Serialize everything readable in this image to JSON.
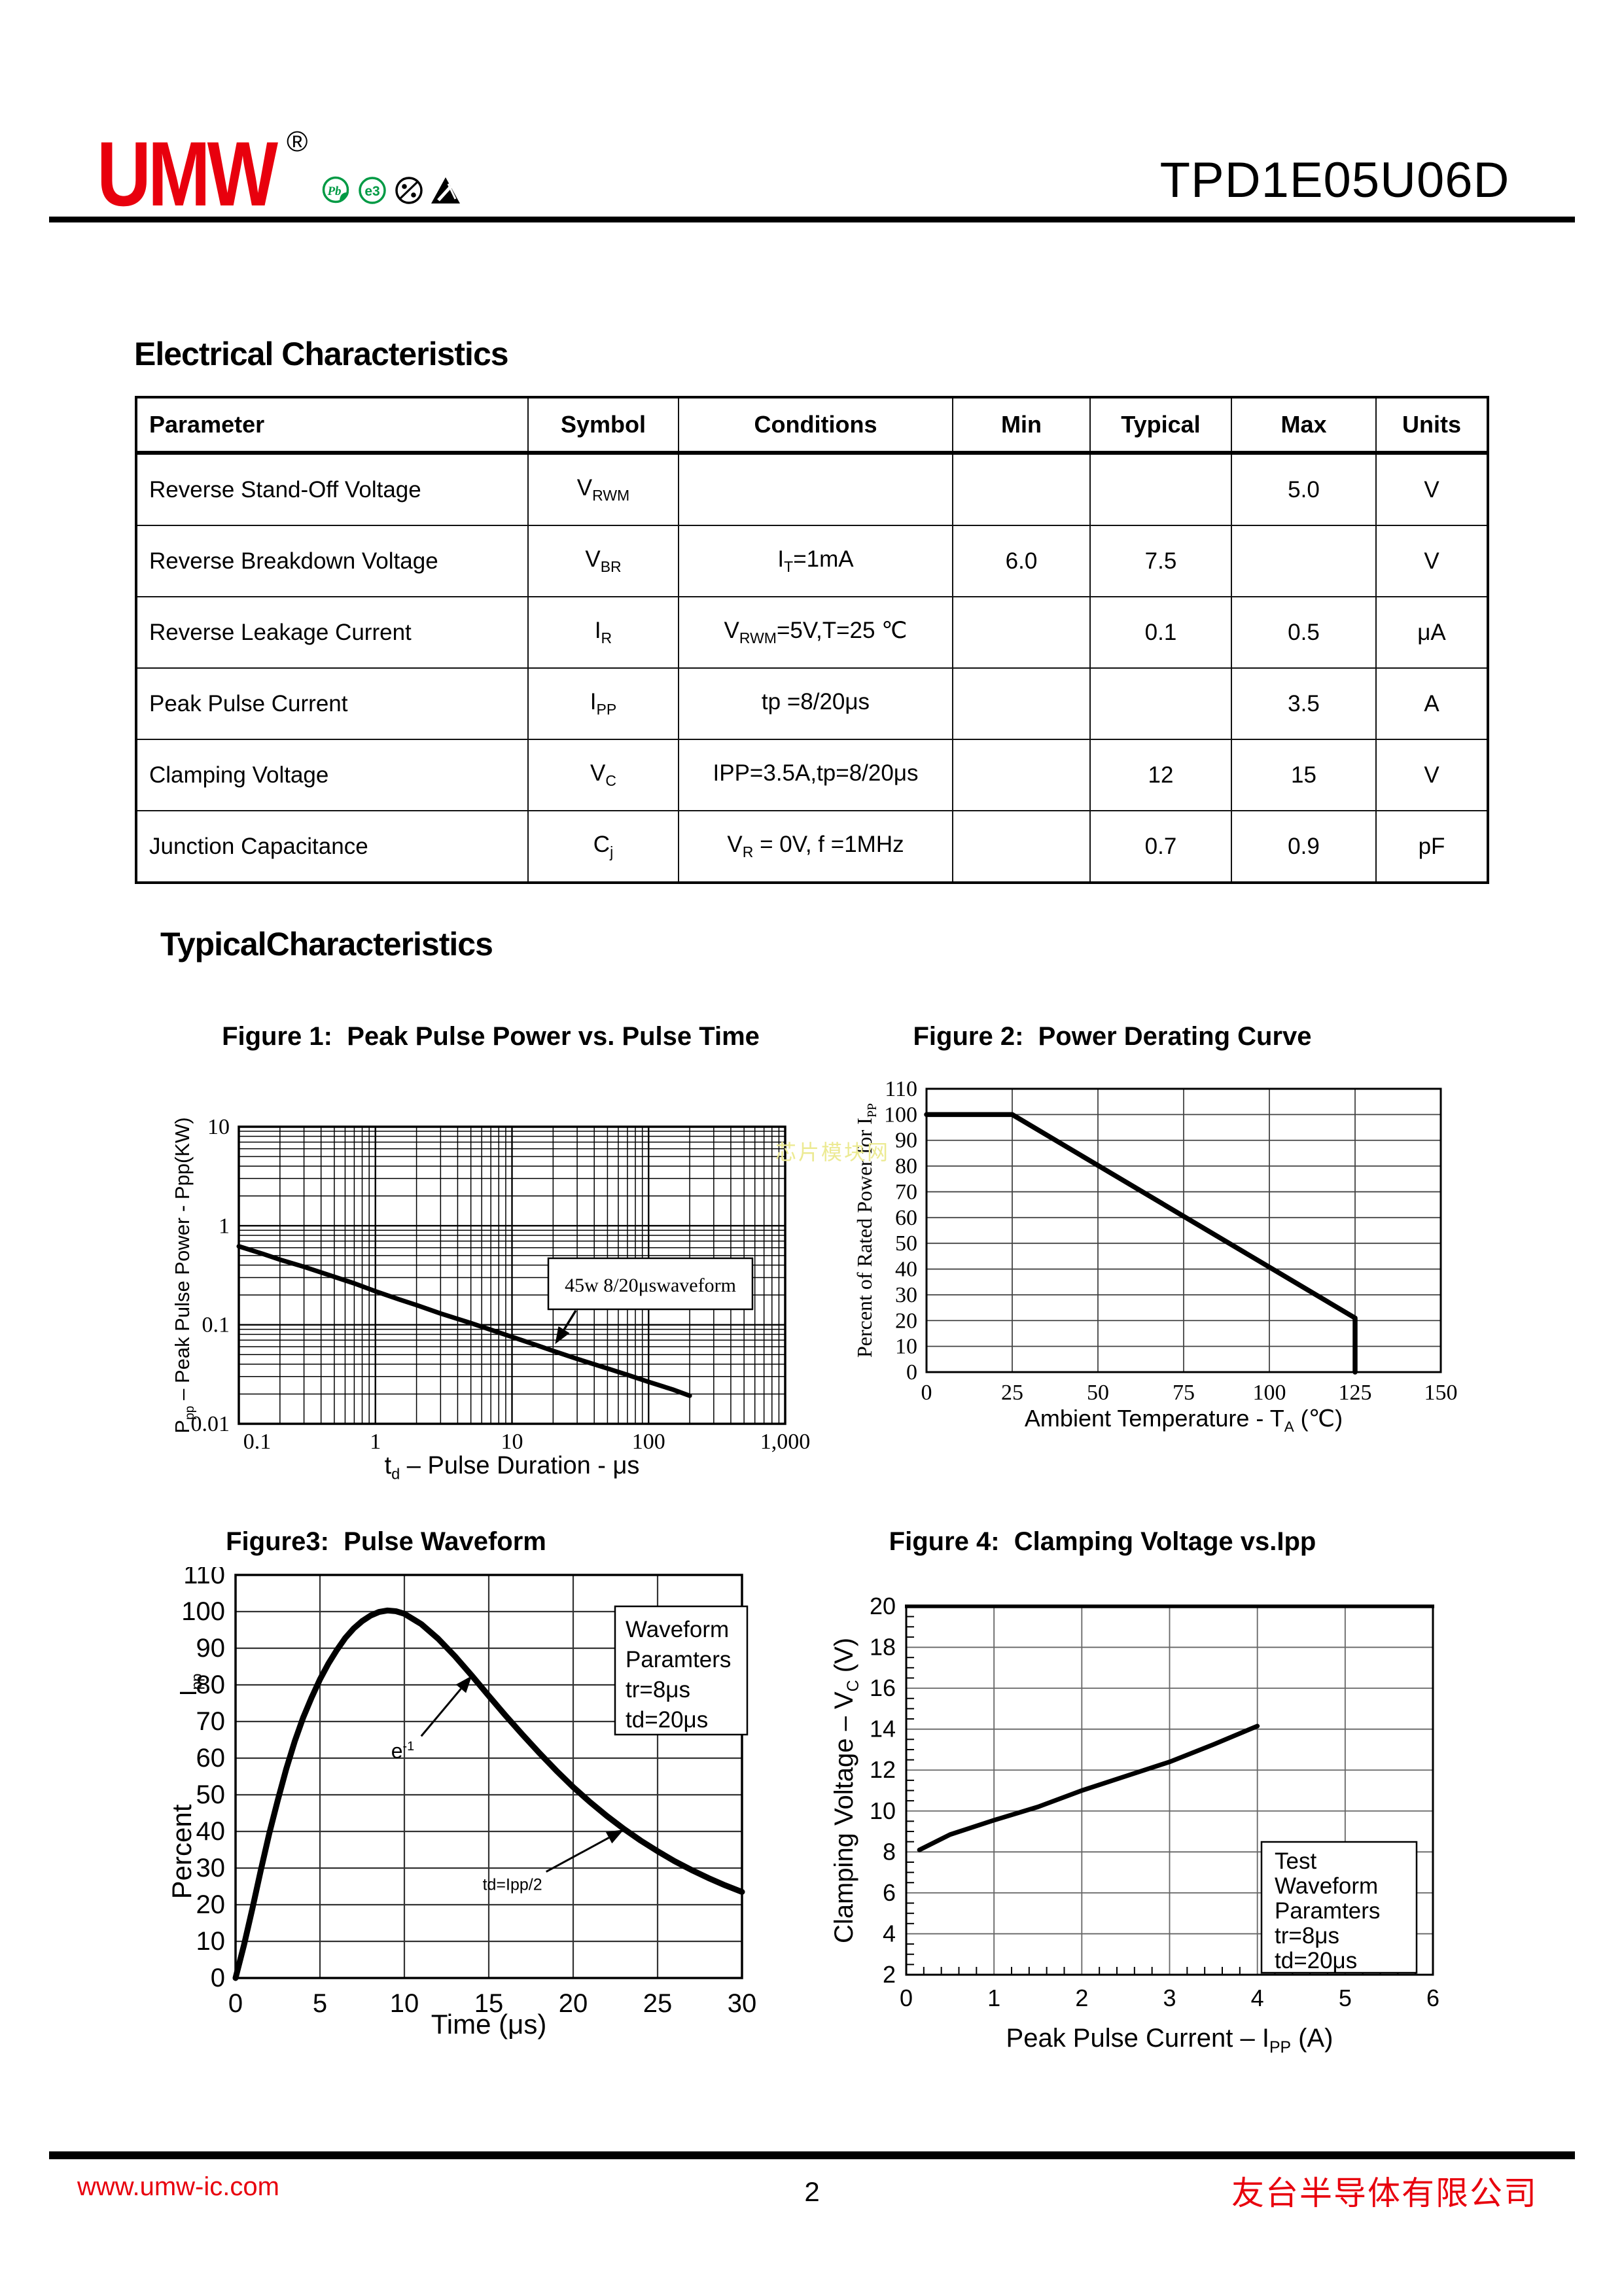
{
  "header": {
    "logo": "UMW",
    "registered": "®",
    "part_number": "TPD1E05U06D",
    "icons": [
      {
        "name": "pb-free-icon",
        "label": "Pb"
      },
      {
        "name": "e3-icon",
        "label": "e3"
      },
      {
        "name": "halogen-free-icon",
        "label": ""
      },
      {
        "name": "esd-icon",
        "label": ""
      }
    ]
  },
  "sections": {
    "electrical": "Electrical Characteristics",
    "typical": "TypicalCharacteristics"
  },
  "table": {
    "headers": [
      "Parameter",
      "Symbol",
      "Conditions",
      "Min",
      "Typical",
      "Max",
      "Units"
    ],
    "rows": [
      {
        "param": "Reverse Stand-Off Voltage",
        "symbol": {
          "main": "V",
          "sub": "RWM"
        },
        "cond": {
          "pre": "",
          "sub": "",
          "post": ""
        },
        "min": "",
        "typical": "",
        "max": "5.0",
        "units": "V"
      },
      {
        "param": "Reverse Breakdown Voltage",
        "symbol": {
          "main": "V",
          "sub": "BR"
        },
        "cond": {
          "pre": "I",
          "sub": "T",
          "post": "=1mA"
        },
        "min": "6.0",
        "typical": "7.5",
        "max": "",
        "units": "V"
      },
      {
        "param": "Reverse Leakage Current",
        "symbol": {
          "main": "I",
          "sub": "R"
        },
        "cond": {
          "pre": "V",
          "sub": "RWM",
          "post": "=5V,T=25 ℃"
        },
        "min": "",
        "typical": "0.1",
        "max": "0.5",
        "units": "μA"
      },
      {
        "param": "Peak Pulse Current",
        "symbol": {
          "main": "I",
          "sub": "PP"
        },
        "cond": {
          "pre": "tp =8/20μs",
          "sub": "",
          "post": ""
        },
        "min": "",
        "typical": "",
        "max": "3.5",
        "units": "A"
      },
      {
        "param": "Clamping Voltage",
        "symbol": {
          "main": "V",
          "sub": "C"
        },
        "cond": {
          "pre": "IPP=3.5A,tp=8/20μs",
          "sub": "",
          "post": ""
        },
        "min": "",
        "typical": "12",
        "max": "15",
        "units": "V"
      },
      {
        "param": "Junction Capacitance",
        "symbol": {
          "main": "C",
          "sub": "j"
        },
        "cond": {
          "pre": "V",
          "sub": "R",
          "post": " = 0V, f =1MHz"
        },
        "min": "",
        "typical": "0.7",
        "max": "0.9",
        "units": "pF"
      }
    ]
  },
  "chart_data": [
    {
      "type": "line",
      "scale": "log-log",
      "title": "Figure 1:  Peak Pulse Power vs. Pulse Time",
      "xlabel_parts": [
        {
          "t": "t"
        },
        {
          "t": "d",
          "sub": true
        },
        {
          "t": "  –   Pulse Duration - μs"
        }
      ],
      "ylabel_parts": [
        {
          "t": "P"
        },
        {
          "t": "pp",
          "sub": true
        },
        {
          "t": "   –   Peak Pulse Power - Ppp(KW)"
        }
      ],
      "xlim": [
        0.1,
        1000
      ],
      "ylim": [
        0.01,
        10
      ],
      "xticks": {
        "values": [
          0.1,
          1,
          10,
          100,
          1000
        ],
        "labels": [
          "0.1",
          "1",
          "10",
          "100",
          "1,000"
        ]
      },
      "yticks": {
        "values": [
          10,
          1,
          0.1,
          0.01
        ],
        "labels": [
          "10",
          "1",
          "0.1",
          "0.01"
        ]
      },
      "grid": "log-major-minor",
      "legend_position": "none",
      "annotation": {
        "text": "45w 8/20μswaveform",
        "arrow_to": [
          20,
          0.06
        ]
      },
      "series": [
        {
          "name": "peak-pulse-power-kw",
          "points": [
            [
              0.1,
              0.62
            ],
            [
              0.15,
              0.52
            ],
            [
              0.2,
              0.455
            ],
            [
              0.3,
              0.385
            ],
            [
              0.5,
              0.305
            ],
            [
              0.7,
              0.262
            ],
            [
              1,
              0.218
            ],
            [
              1.5,
              0.18
            ],
            [
              2,
              0.158
            ],
            [
              3,
              0.13
            ],
            [
              5,
              0.104
            ],
            [
              7,
              0.089
            ],
            [
              10,
              0.0755
            ],
            [
              15,
              0.0625
            ],
            [
              20,
              0.0545
            ],
            [
              30,
              0.0452
            ],
            [
              50,
              0.0362
            ],
            [
              70,
              0.0312
            ],
            [
              100,
              0.0265
            ],
            [
              150,
              0.0222
            ],
            [
              200,
              0.0192
            ]
          ]
        }
      ]
    },
    {
      "type": "line",
      "scale": "linear",
      "title": "Figure 2:  Power Derating Curve",
      "xlabel_parts": [
        {
          "t": "Ambient Temperature - T"
        },
        {
          "t": "A",
          "sub": true
        },
        {
          "t": " (℃)"
        }
      ],
      "ylabel_parts": [
        {
          "t": "Percent of Rated Power for I"
        },
        {
          "t": "PP",
          "sub": true
        }
      ],
      "xlim": [
        0,
        150
      ],
      "ylim": [
        0,
        110
      ],
      "xticks": [
        0,
        25,
        50,
        75,
        100,
        125,
        150
      ],
      "yticks": [
        0,
        10,
        20,
        30,
        40,
        50,
        60,
        70,
        80,
        90,
        100,
        110
      ],
      "grid": "on",
      "legend_position": "none",
      "series": [
        {
          "name": "power-derating",
          "points": [
            [
              0,
              100
            ],
            [
              25,
              100
            ],
            [
              125,
              21
            ],
            [
              125,
              0
            ]
          ]
        }
      ]
    },
    {
      "type": "line",
      "scale": "linear",
      "title": "Figure3:  Pulse Waveform",
      "xlabel_parts": [
        {
          "t": "Time (μs)"
        }
      ],
      "ylabel_parts": [
        {
          "t": "Percent"
        }
      ],
      "ylabel2_parts": [
        {
          "t": "I"
        },
        {
          "t": "pp",
          "sub": true
        }
      ],
      "xlim": [
        0,
        30
      ],
      "ylim": [
        0,
        110
      ],
      "xticks": [
        0,
        5,
        10,
        15,
        20,
        25,
        30
      ],
      "yticks": [
        0,
        10,
        20,
        30,
        40,
        50,
        60,
        70,
        80,
        90,
        100,
        110
      ],
      "grid": "on",
      "legend": {
        "lines": [
          "Waveform",
          "Paramters",
          "tr=8μs",
          "td=20μs"
        ]
      },
      "annotations": [
        {
          "parts": [
            {
              "t": "e"
            },
            {
              "t": "-1",
              "sup": true
            }
          ],
          "size": 32,
          "label_at": [
            9.9,
            60
          ],
          "arrow_from": [
            11.0,
            66
          ],
          "arrow_to": [
            14,
            82.5
          ]
        },
        {
          "parts": [
            {
              "t": "td=Ipp/2"
            }
          ],
          "size": 25,
          "label_at": [
            16.4,
            24
          ],
          "arrow_from": [
            18.4,
            29
          ],
          "arrow_to": [
            23,
            40.5
          ]
        }
      ],
      "series": [
        {
          "name": "pulse-waveform-percent-ipp",
          "points": [
            [
              0,
              0
            ],
            [
              0.5,
              9
            ],
            [
              1,
              19
            ],
            [
              1.5,
              29.5
            ],
            [
              2,
              39.5
            ],
            [
              2.5,
              48.5
            ],
            [
              3,
              57
            ],
            [
              3.5,
              64.5
            ],
            [
              4,
              71
            ],
            [
              4.5,
              76.5
            ],
            [
              5,
              81.5
            ],
            [
              5.5,
              85.8
            ],
            [
              6,
              89.5
            ],
            [
              6.5,
              92.8
            ],
            [
              7,
              95.4
            ],
            [
              7.5,
              97.4
            ],
            [
              8,
              98.9
            ],
            [
              8.5,
              99.9
            ],
            [
              9,
              100.3
            ],
            [
              9.5,
              100.1
            ],
            [
              10,
              99.4
            ],
            [
              11,
              96.6
            ],
            [
              12,
              92.6
            ],
            [
              13,
              87.8
            ],
            [
              14,
              82.5
            ],
            [
              15,
              77
            ],
            [
              16,
              71.6
            ],
            [
              17,
              66.4
            ],
            [
              18,
              61.4
            ],
            [
              19,
              56.6
            ],
            [
              20,
              52.1
            ],
            [
              21,
              48
            ],
            [
              22,
              44.2
            ],
            [
              23,
              40.7
            ],
            [
              24,
              37.5
            ],
            [
              25,
              34.6
            ],
            [
              26,
              31.9
            ],
            [
              27,
              29.5
            ],
            [
              28,
              27.3
            ],
            [
              29,
              25.3
            ],
            [
              30,
              23.5
            ]
          ]
        }
      ]
    },
    {
      "type": "line",
      "scale": "linear",
      "title": "Figure 4:  Clamping Voltage vs.Ipp",
      "xlabel_parts": [
        {
          "t": "Peak Pulse Current – I"
        },
        {
          "t": "PP",
          "sub": true
        },
        {
          "t": " (A)"
        }
      ],
      "ylabel_parts": [
        {
          "t": "Clamping Voltage – V"
        },
        {
          "t": "C",
          "sub": true
        },
        {
          "t": " (V)"
        }
      ],
      "xlim": [
        0,
        6
      ],
      "ylim": [
        2,
        20
      ],
      "xticks": [
        0,
        1,
        2,
        3,
        4,
        5,
        6
      ],
      "yticks": [
        2,
        4,
        6,
        8,
        10,
        12,
        14,
        16,
        18,
        20
      ],
      "minor_ticks": {
        "x": 0.2,
        "y": 0.5
      },
      "grid": "on",
      "legend": {
        "lines": [
          "Test",
          "Waveform",
          "Paramters",
          "tr=8μs",
          "td=20μs"
        ]
      },
      "series": [
        {
          "name": "clamping-voltage",
          "points": [
            [
              0.15,
              8.1
            ],
            [
              0.5,
              8.85
            ],
            [
              1,
              9.55
            ],
            [
              1.5,
              10.2
            ],
            [
              2,
              11.0
            ],
            [
              2.5,
              11.7
            ],
            [
              3,
              12.4
            ],
            [
              3.5,
              13.25
            ],
            [
              4,
              14.15
            ]
          ]
        }
      ]
    }
  ],
  "watermark": "芯片模块网",
  "footer": {
    "website": "www.umw-ic.com",
    "page": "2",
    "company": "友台半导体有限公司"
  },
  "colors": {
    "accent_red": "#e8000d",
    "icon_green": "#009a44",
    "watermark_yellow": "#ecea93"
  }
}
